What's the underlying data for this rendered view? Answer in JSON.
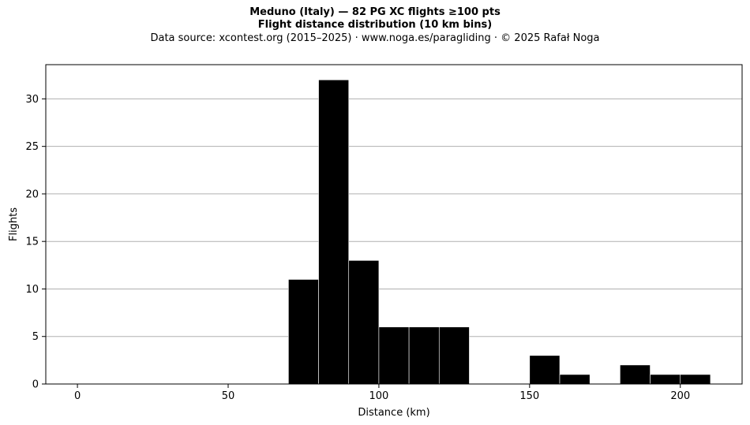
{
  "chart_data": {
    "type": "bar",
    "title": "Meduno (Italy)  —  82 PG XC flights ≥100 pts",
    "subtitle": "Flight distance distribution (10 km bins)",
    "source": "Data source: xcontest.org (2015–2025)  ·  www.noga.es/paragliding  ·  © 2025 Rafał Noga",
    "xlabel": "Distance (km)",
    "ylabel": "Flights",
    "bin_width": 10,
    "bins": [
      {
        "start": 70,
        "end": 80,
        "count": 11
      },
      {
        "start": 80,
        "end": 90,
        "count": 32
      },
      {
        "start": 90,
        "end": 100,
        "count": 13
      },
      {
        "start": 100,
        "end": 110,
        "count": 6
      },
      {
        "start": 110,
        "end": 120,
        "count": 6
      },
      {
        "start": 120,
        "end": 130,
        "count": 6
      },
      {
        "start": 150,
        "end": 160,
        "count": 3
      },
      {
        "start": 160,
        "end": 170,
        "count": 1
      },
      {
        "start": 180,
        "end": 190,
        "count": 2
      },
      {
        "start": 190,
        "end": 200,
        "count": 1
      },
      {
        "start": 200,
        "end": 210,
        "count": 1
      }
    ],
    "xlim": [
      -10.5,
      220.5
    ],
    "ylim": [
      0,
      33.6
    ],
    "xticks": [
      0,
      50,
      100,
      150,
      200
    ],
    "yticks": [
      0,
      5,
      10,
      15,
      20,
      25,
      30
    ],
    "grid": "horizontal",
    "bar_color": "#000000",
    "bar_edge_color": "#ffffff",
    "grid_color": "#b0b0b0"
  }
}
